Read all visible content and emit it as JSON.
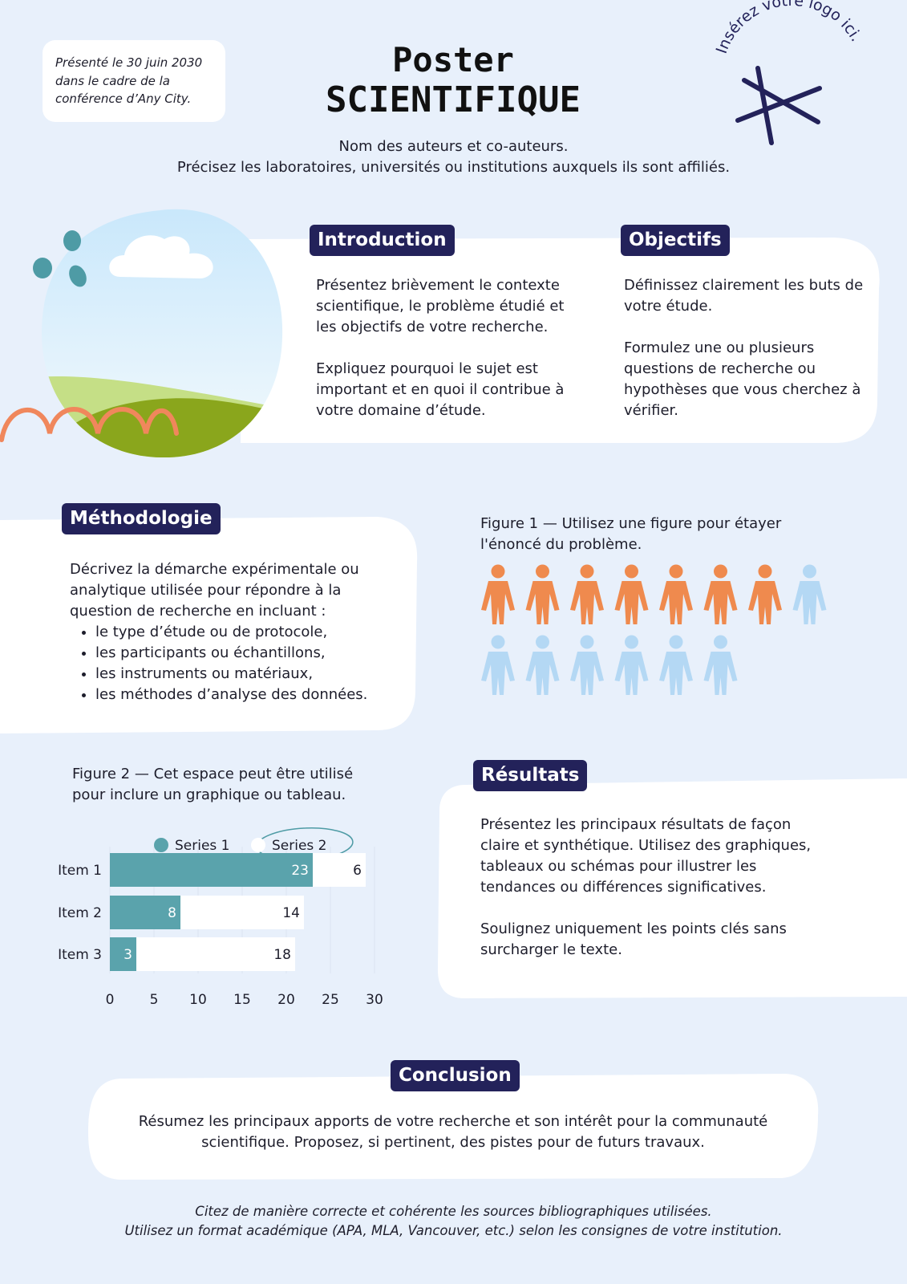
{
  "header": {
    "date_note": [
      "Présenté le 30 juin 2030",
      "dans le cadre de la",
      "conférence d’Any City."
    ],
    "title_line1": "Poster",
    "title_line2": "SCIENTIFIQUE",
    "logo_text": "Insérez votre logo ici.",
    "authors": "Nom des auteurs et co-auteurs.",
    "affiliations": "Précisez les laboratoires, universités ou institutions auxquels ils sont affiliés."
  },
  "introduction": {
    "heading": "Introduction",
    "paragraphs": [
      "Présentez brièvement le contexte scientifique, le problème étudié et les objectifs de votre recherche.",
      "Expliquez pourquoi le sujet est important et en quoi il contribue à votre domaine d’étude."
    ]
  },
  "objectifs": {
    "heading": "Objectifs",
    "paragraphs": [
      "Définissez clairement les buts de votre étude.",
      "Formulez une ou plusieurs questions de recherche ou hypothèses que vous cherchez à vérifier."
    ]
  },
  "methodologie": {
    "heading": "Méthodologie",
    "text": "Décrivez la démarche expérimentale ou analytique utilisée pour répondre à la question de recherche en incluant :",
    "bullets": [
      "le type d’étude ou de protocole,",
      "les participants ou échantillons,",
      "les instruments ou matériaux,",
      "les méthodes d’analyse des données."
    ]
  },
  "figure1": {
    "caption": "Figure 1 — Utilisez une figure pour étayer l'énoncé du problème.",
    "counts": [
      7,
      7
    ],
    "colors": [
      "#ef8a4e",
      "#b4d8f4"
    ]
  },
  "figure2": {
    "caption": "Figure 2 — Cet espace peut être utilisé pour inclure un graphique ou tableau."
  },
  "chart_data": {
    "type": "bar",
    "orientation": "horizontal",
    "stacked": true,
    "categories": [
      "Item 1",
      "Item 2",
      "Item 3"
    ],
    "series": [
      {
        "name": "Series 1",
        "color": "#5aa3ac",
        "values": [
          23,
          8,
          3
        ]
      },
      {
        "name": "Series 2",
        "color": "#ffffff",
        "values": [
          6,
          14,
          18
        ]
      }
    ],
    "xlim": [
      0,
      30
    ],
    "xticks": [
      0,
      5,
      10,
      15,
      20,
      25,
      30
    ],
    "grid": true,
    "legend": "top"
  },
  "resultats": {
    "heading": "Résultats",
    "paragraphs": [
      "Présentez les principaux résultats de façon claire et synthétique. Utilisez des graphiques, tableaux ou schémas pour illustrer les tendances ou différences significatives.",
      "Soulignez uniquement les points clés sans surcharger le texte."
    ]
  },
  "conclusion": {
    "heading": "Conclusion",
    "text": "Résumez les principaux apports de votre recherche et son intérêt pour la communauté scientifique. Proposez, si pertinent, des pistes pour de futurs travaux."
  },
  "references": {
    "lines": [
      "Citez de manière correcte et cohérente les sources bibliographiques utilisées.",
      "Utilisez un format académique (APA, MLA, Vancouver, etc.) selon les consignes de votre institution."
    ]
  }
}
